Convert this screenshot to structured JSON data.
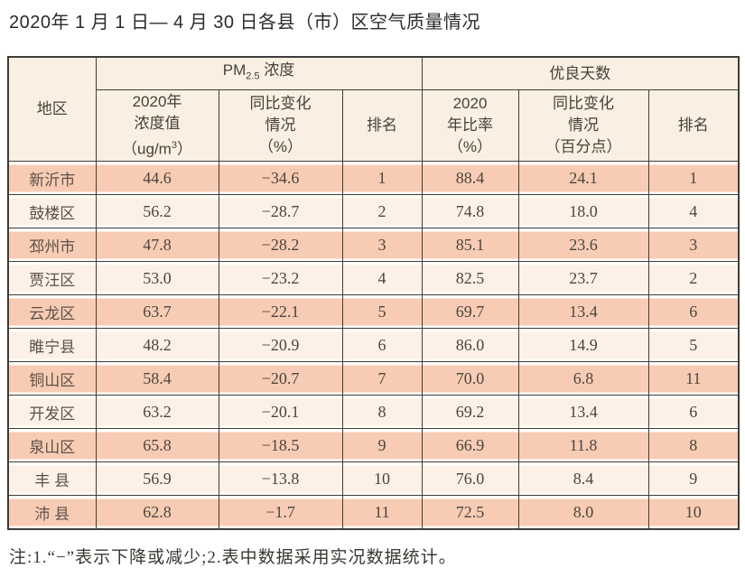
{
  "title": "2020年 1 月 1 日— 4 月 30 日各县（市）区空气质量情况",
  "table": {
    "header": {
      "region": "地区",
      "pm_group": {
        "prefix": "PM",
        "sub": "2.5",
        "suffix": " 浓度"
      },
      "good_group": "优良天数",
      "pm_value": {
        "l1": "2020年",
        "l2": "浓度值",
        "l3_pre": "（ug/m",
        "l3_sup": "3",
        "l3_post": "）"
      },
      "pm_change": {
        "l1": "同比变化",
        "l2": "情况",
        "l3": "（%）"
      },
      "pm_rank": "排名",
      "good_ratio": {
        "l1": "2020",
        "l2": "年比率",
        "l3": "（%）"
      },
      "good_change": {
        "l1": "同比变化",
        "l2": "情况",
        "l3": "（百分点）"
      },
      "good_rank": "排名"
    },
    "columns_order": [
      "region",
      "pm_value",
      "pm_change",
      "pm_rank",
      "good_ratio",
      "good_change",
      "good_rank"
    ],
    "rows": [
      {
        "region": "新沂市",
        "pm_value": "44.6",
        "pm_change": "−34.6",
        "pm_rank": "1",
        "good_ratio": "88.4",
        "good_change": "24.1",
        "good_rank": "1"
      },
      {
        "region": "鼓楼区",
        "pm_value": "56.2",
        "pm_change": "−28.7",
        "pm_rank": "2",
        "good_ratio": "74.8",
        "good_change": "18.0",
        "good_rank": "4"
      },
      {
        "region": "邳州市",
        "pm_value": "47.8",
        "pm_change": "−28.2",
        "pm_rank": "3",
        "good_ratio": "85.1",
        "good_change": "23.6",
        "good_rank": "3"
      },
      {
        "region": "贾汪区",
        "pm_value": "53.0",
        "pm_change": "−23.2",
        "pm_rank": "4",
        "good_ratio": "82.5",
        "good_change": "23.7",
        "good_rank": "2"
      },
      {
        "region": "云龙区",
        "pm_value": "63.7",
        "pm_change": "−22.1",
        "pm_rank": "5",
        "good_ratio": "69.7",
        "good_change": "13.4",
        "good_rank": "6"
      },
      {
        "region": "睢宁县",
        "pm_value": "48.2",
        "pm_change": "−20.9",
        "pm_rank": "6",
        "good_ratio": "86.0",
        "good_change": "14.9",
        "good_rank": "5"
      },
      {
        "region": "铜山区",
        "pm_value": "58.4",
        "pm_change": "−20.7",
        "pm_rank": "7",
        "good_ratio": "70.0",
        "good_change": "6.8",
        "good_rank": "11"
      },
      {
        "region": "开发区",
        "pm_value": "63.2",
        "pm_change": "−20.1",
        "pm_rank": "8",
        "good_ratio": "69.2",
        "good_change": "13.4",
        "good_rank": "6"
      },
      {
        "region": "泉山区",
        "pm_value": "65.8",
        "pm_change": "−18.5",
        "pm_rank": "9",
        "good_ratio": "66.9",
        "good_change": "11.8",
        "good_rank": "8"
      },
      {
        "region": "丰 县",
        "pm_value": "56.9",
        "pm_change": "−13.8",
        "pm_rank": "10",
        "good_ratio": "76.0",
        "good_change": "8.4",
        "good_rank": "9"
      },
      {
        "region": "沛 县",
        "pm_value": "62.8",
        "pm_change": "−1.7",
        "pm_rank": "11",
        "good_ratio": "72.5",
        "good_change": "8.0",
        "good_rank": "10"
      }
    ]
  },
  "footnote": "注:1.“−”表示下降或减少;2.表中数据采用实况数据统计。",
  "colors": {
    "row_odd": "#f8ccb4",
    "row_even": "#fdf1e7",
    "header_bg": "#faf0e2",
    "border": "#403c38",
    "row_gap": "#fffefb"
  }
}
